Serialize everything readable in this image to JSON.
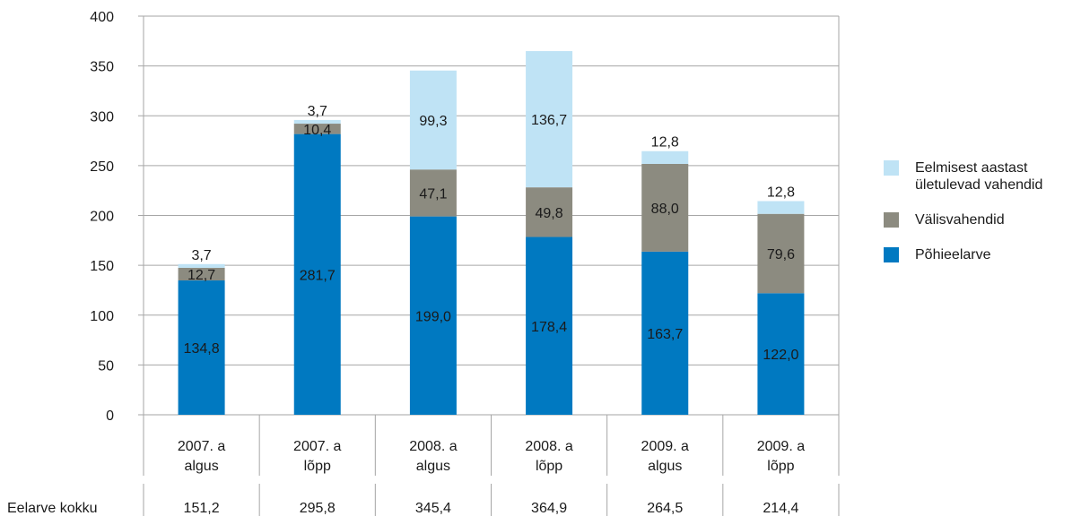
{
  "chart_data": {
    "type": "bar",
    "stacked": true,
    "categories": [
      [
        "2007. a",
        "algus"
      ],
      [
        "2007. a",
        "lõpp"
      ],
      [
        "2008. a",
        "algus"
      ],
      [
        "2008. a",
        "lõpp"
      ],
      [
        "2009. a",
        "algus"
      ],
      [
        "2009. a",
        "lõpp"
      ]
    ],
    "series": [
      {
        "name": "Põhieelarve",
        "color": "#0079c1",
        "values": [
          134.8,
          281.7,
          199.0,
          178.4,
          163.7,
          122.0
        ],
        "labels": [
          "134,8",
          "281,7",
          "199,0",
          "178,4",
          "163,7",
          "122,0"
        ]
      },
      {
        "name": "Välisvahendid",
        "color": "#8c8b80",
        "values": [
          12.7,
          10.4,
          47.1,
          49.8,
          88.0,
          79.6
        ],
        "labels": [
          "12,7",
          "10,4",
          "47,1",
          "49,8",
          "88,0",
          "79,6"
        ]
      },
      {
        "name": "Eelmisest aastast\nületulevad vahendid",
        "color": "#bfe3f5",
        "values": [
          3.7,
          3.7,
          99.3,
          136.7,
          12.8,
          12.8
        ],
        "labels": [
          "3,7",
          "3,7",
          "99,3",
          "136,7",
          "12,8",
          "12,8"
        ]
      }
    ],
    "yticks": [
      "0",
      "50",
      "100",
      "150",
      "200",
      "250",
      "300",
      "350",
      "400"
    ],
    "ylim": [
      0,
      400
    ],
    "grid": true,
    "legend_position": "right",
    "totals_row": {
      "label": "Eelarve kokku",
      "values": [
        "151,2",
        "295,8",
        "345,4",
        "364,9",
        "264,5",
        "214,4"
      ]
    }
  },
  "legend": [
    {
      "label": "Eelmisest aastast\nületulevad vahendid",
      "color": "#bfe3f5"
    },
    {
      "label": "Välisvahendid",
      "color": "#8c8b80"
    },
    {
      "label": "Põhieelarve",
      "color": "#0079c1"
    }
  ]
}
